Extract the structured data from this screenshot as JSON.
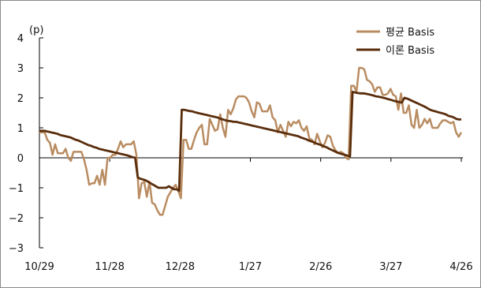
{
  "chart_data": {
    "type": "line",
    "unit_label": "(p)",
    "ylim": [
      -3,
      4
    ],
    "y_ticks": [
      "4",
      "3",
      "2",
      "1",
      "0",
      "−1",
      "−2",
      "−3"
    ],
    "x_tick_labels": [
      "10/29",
      "11/28",
      "12/28",
      "1/27",
      "2/26",
      "3/27",
      "4/26"
    ],
    "legend_position": "top-right",
    "grid": false,
    "series": [
      {
        "name": "평균 Basis",
        "color": "#b98c61",
        "values": [
          0.85,
          0.85,
          0.85,
          0.6,
          0.5,
          0.1,
          0.45,
          0.15,
          0.15,
          0.15,
          0.3,
          0.0,
          -0.1,
          0.2,
          0.2,
          0.2,
          0.2,
          -0.05,
          -0.4,
          -0.9,
          -0.85,
          -0.85,
          -0.6,
          -0.9,
          -0.4,
          -0.9,
          0.0,
          0.0,
          0.1,
          0.1,
          0.3,
          0.55,
          0.35,
          0.45,
          0.45,
          0.45,
          0.55,
          0.1,
          -1.35,
          -0.85,
          -0.8,
          -1.3,
          -0.8,
          -1.5,
          -1.55,
          -1.75,
          -1.9,
          -1.9,
          -1.6,
          -1.3,
          -1.15,
          -1.0,
          -0.9,
          -1.1,
          -1.35,
          0.6,
          0.6,
          0.3,
          0.3,
          0.6,
          0.85,
          1.0,
          1.1,
          0.45,
          0.45,
          1.3,
          1.1,
          0.9,
          0.95,
          1.45,
          1.0,
          0.7,
          1.6,
          1.45,
          1.65,
          1.95,
          2.05,
          2.05,
          2.05,
          2.0,
          1.85,
          1.55,
          1.35,
          1.85,
          1.8,
          1.55,
          1.55,
          1.55,
          1.75,
          1.35,
          1.25,
          0.85,
          1.1,
          0.9,
          0.7,
          1.2,
          1.05,
          1.2,
          1.15,
          1.25,
          1.0,
          0.9,
          1.05,
          0.65,
          0.6,
          0.45,
          0.8,
          0.55,
          0.35,
          0.5,
          0.75,
          0.7,
          0.4,
          0.25,
          0.15,
          0.2,
          0.15,
          0.0,
          -0.05,
          2.4,
          2.4,
          2.2,
          3.0,
          3.0,
          2.95,
          2.6,
          2.55,
          2.45,
          2.2,
          2.35,
          2.35,
          2.1,
          2.1,
          2.15,
          2.3,
          2.1,
          2.05,
          1.6,
          2.15,
          1.5,
          1.5,
          1.75,
          1.1,
          1.0,
          1.6,
          1.0,
          1.1,
          1.3,
          1.15,
          1.3,
          1.0,
          1.0,
          1.0,
          1.15,
          1.25,
          1.25,
          1.2,
          1.15,
          1.2,
          0.85,
          0.7,
          0.85
        ]
      },
      {
        "name": "이론 Basis",
        "color": "#5a2d0c",
        "values": [
          0.9,
          0.9,
          0.9,
          0.88,
          0.86,
          0.84,
          0.82,
          0.8,
          0.76,
          0.74,
          0.72,
          0.7,
          0.68,
          0.64,
          0.6,
          0.58,
          0.54,
          0.5,
          0.46,
          0.42,
          0.4,
          0.36,
          0.34,
          0.3,
          0.28,
          0.26,
          0.24,
          0.22,
          0.2,
          0.18,
          0.16,
          0.14,
          0.12,
          0.1,
          0.08,
          0.05,
          0.02,
          0.0,
          -0.65,
          -0.7,
          -0.72,
          -0.75,
          -0.8,
          -0.85,
          -0.9,
          -0.95,
          -1.0,
          -1.0,
          -1.0,
          -1.0,
          -0.95,
          -1.0,
          -1.05,
          -1.05,
          -1.1,
          1.6,
          1.6,
          1.58,
          1.56,
          1.55,
          1.52,
          1.5,
          1.48,
          1.46,
          1.44,
          1.42,
          1.4,
          1.38,
          1.36,
          1.34,
          1.3,
          1.28,
          1.25,
          1.23,
          1.22,
          1.2,
          1.2,
          1.18,
          1.16,
          1.14,
          1.12,
          1.1,
          1.08,
          1.06,
          1.04,
          1.02,
          1.0,
          0.98,
          0.96,
          0.94,
          0.92,
          0.9,
          0.88,
          0.86,
          0.84,
          0.82,
          0.8,
          0.78,
          0.76,
          0.74,
          0.72,
          0.68,
          0.65,
          0.62,
          0.58,
          0.55,
          0.52,
          0.48,
          0.45,
          0.42,
          0.38,
          0.35,
          0.3,
          0.26,
          0.22,
          0.18,
          0.15,
          0.12,
          0.1,
          0.07,
          0.05,
          2.2,
          2.18,
          2.16,
          2.15,
          2.15,
          2.14,
          2.12,
          2.1,
          2.08,
          2.05,
          2.04,
          2.02,
          2.0,
          1.98,
          1.95,
          1.93,
          1.9,
          1.88,
          1.86,
          1.84,
          2.0,
          1.98,
          1.94,
          1.9,
          1.86,
          1.82,
          1.78,
          1.74,
          1.7,
          1.65,
          1.6,
          1.57,
          1.55,
          1.52,
          1.5,
          1.48,
          1.45,
          1.4,
          1.38,
          1.35,
          1.3,
          1.28,
          1.28
        ]
      }
    ]
  }
}
